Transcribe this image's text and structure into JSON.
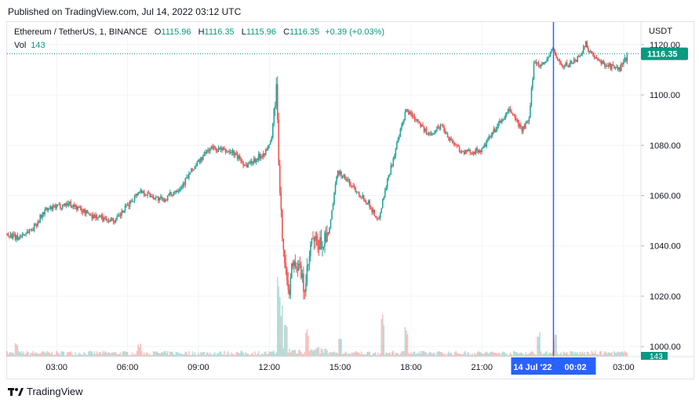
{
  "header": {
    "published": "Published on TradingView.com, Jul 14, 2022 03:12 UTC"
  },
  "legend": {
    "symbol": "Ethereum / TetherUS, 1, BINANCE",
    "open_label": "O",
    "open": "1115.96",
    "high_label": "H",
    "high": "1116.35",
    "low_label": "L",
    "low": "1115.96",
    "close_label": "C",
    "close": "1116.35",
    "change": "+0.39 (+0.03%)",
    "vol_label": "Vol",
    "vol": "143"
  },
  "footer": {
    "brand": "TradingView"
  },
  "colors": {
    "up": "#26a69a",
    "down": "#ef5350",
    "crosshair": "#2962ff",
    "price_badge": "#089981"
  },
  "chart_data": {
    "type": "candlestick",
    "unit": "USDT",
    "ylim": [
      996,
      1129
    ],
    "y_ticks": [
      "1000.00",
      "1020.00",
      "1040.00",
      "1060.00",
      "1080.00",
      "1100.00",
      "1120.00"
    ],
    "y_tick_values": [
      1000,
      1020,
      1040,
      1060,
      1080,
      1100,
      1120
    ],
    "x_ticks": [
      "03:00",
      "06:00",
      "09:00",
      "12:00",
      "15:00",
      "18:00",
      "21:00",
      "03:00"
    ],
    "x_tick_hours": [
      3,
      6,
      9,
      12,
      15,
      18,
      21,
      27
    ],
    "xlim_hours": [
      0.9,
      27.7
    ],
    "last_price": "1116.35",
    "last_volume": "143",
    "crosshair_label": "14 Jul '22",
    "crosshair_time": "00:02",
    "crosshair_hour": 24.03,
    "price_path": [
      [
        0.9,
        1045
      ],
      [
        1.3,
        1043
      ],
      [
        2.0,
        1047
      ],
      [
        2.5,
        1054
      ],
      [
        3.5,
        1057
      ],
      [
        4.5,
        1052
      ],
      [
        5.5,
        1050
      ],
      [
        6.5,
        1062
      ],
      [
        7.5,
        1058
      ],
      [
        8.3,
        1064
      ],
      [
        8.8,
        1071
      ],
      [
        9.5,
        1079
      ],
      [
        10.5,
        1077
      ],
      [
        11.0,
        1072
      ],
      [
        11.5,
        1075
      ],
      [
        11.9,
        1078
      ],
      [
        12.1,
        1083
      ],
      [
        12.3,
        1103
      ],
      [
        12.45,
        1058
      ],
      [
        12.6,
        1040
      ],
      [
        12.8,
        1020
      ],
      [
        13.0,
        1035
      ],
      [
        13.3,
        1030
      ],
      [
        13.5,
        1022
      ],
      [
        13.8,
        1042
      ],
      [
        14.1,
        1040
      ],
      [
        14.5,
        1044
      ],
      [
        14.9,
        1070
      ],
      [
        15.5,
        1064
      ],
      [
        16.2,
        1057
      ],
      [
        16.6,
        1050
      ],
      [
        17.0,
        1066
      ],
      [
        17.4,
        1080
      ],
      [
        17.8,
        1094
      ],
      [
        18.3,
        1090
      ],
      [
        18.7,
        1084
      ],
      [
        19.3,
        1088
      ],
      [
        19.6,
        1083
      ],
      [
        20.2,
        1077
      ],
      [
        21.0,
        1078
      ],
      [
        21.6,
        1087
      ],
      [
        22.2,
        1094
      ],
      [
        22.7,
        1086
      ],
      [
        23.0,
        1090
      ],
      [
        23.2,
        1113
      ],
      [
        23.6,
        1112
      ],
      [
        24.0,
        1118
      ],
      [
        24.4,
        1111
      ],
      [
        25.0,
        1114
      ],
      [
        25.4,
        1120
      ],
      [
        25.8,
        1114
      ],
      [
        26.3,
        1112
      ],
      [
        26.8,
        1110
      ],
      [
        27.2,
        1116
      ]
    ],
    "volume_spikes": [
      [
        12.4,
        160
      ],
      [
        12.5,
        110
      ],
      [
        12.7,
        70
      ],
      [
        16.8,
        130
      ],
      [
        17.8,
        95
      ],
      [
        23.4,
        85
      ],
      [
        24.1,
        70
      ],
      [
        15.0,
        60
      ],
      [
        13.6,
        55
      ],
      [
        1.3,
        45
      ],
      [
        6.5,
        40
      ]
    ]
  }
}
